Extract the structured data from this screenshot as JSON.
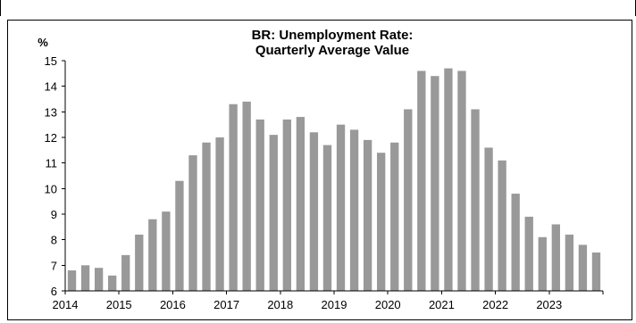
{
  "chart_data": {
    "type": "bar",
    "title_lines": [
      "BR: Unemployment Rate:",
      "Quarterly Average Value"
    ],
    "ylabel": "%",
    "xlabel": "",
    "ylim": [
      6,
      15
    ],
    "yticks": [
      6,
      7,
      8,
      9,
      10,
      11,
      12,
      13,
      14,
      15
    ],
    "xtick_labels": [
      "2014",
      "2015",
      "2016",
      "2017",
      "2018",
      "2019",
      "2020",
      "2021",
      "2022",
      "2023"
    ],
    "grid": false,
    "legend": "none",
    "bar_color": "#999999",
    "categories": [
      "2014 Q1",
      "2014 Q2",
      "2014 Q3",
      "2014 Q4",
      "2015 Q1",
      "2015 Q2",
      "2015 Q3",
      "2015 Q4",
      "2016 Q1",
      "2016 Q2",
      "2016 Q3",
      "2016 Q4",
      "2017 Q1",
      "2017 Q2",
      "2017 Q3",
      "2017 Q4",
      "2018 Q1",
      "2018 Q2",
      "2018 Q3",
      "2018 Q4",
      "2019 Q1",
      "2019 Q2",
      "2019 Q3",
      "2019 Q4",
      "2020 Q1",
      "2020 Q2",
      "2020 Q3",
      "2020 Q4",
      "2021 Q1",
      "2021 Q2",
      "2021 Q3",
      "2021 Q4",
      "2022 Q1",
      "2022 Q2",
      "2022 Q3",
      "2022 Q4",
      "2023 Q1",
      "2023 Q2",
      "2023 Q3",
      "2023 Q4"
    ],
    "values": [
      6.8,
      7.0,
      6.9,
      6.6,
      7.4,
      8.2,
      8.8,
      9.1,
      10.3,
      11.3,
      11.8,
      12.0,
      13.3,
      13.4,
      12.7,
      12.1,
      12.7,
      12.8,
      12.2,
      11.7,
      12.5,
      12.3,
      11.9,
      11.4,
      11.8,
      13.1,
      14.6,
      14.4,
      14.7,
      14.6,
      13.1,
      11.6,
      11.1,
      9.8,
      8.9,
      8.1,
      8.6,
      8.2,
      7.8,
      7.5
    ]
  }
}
